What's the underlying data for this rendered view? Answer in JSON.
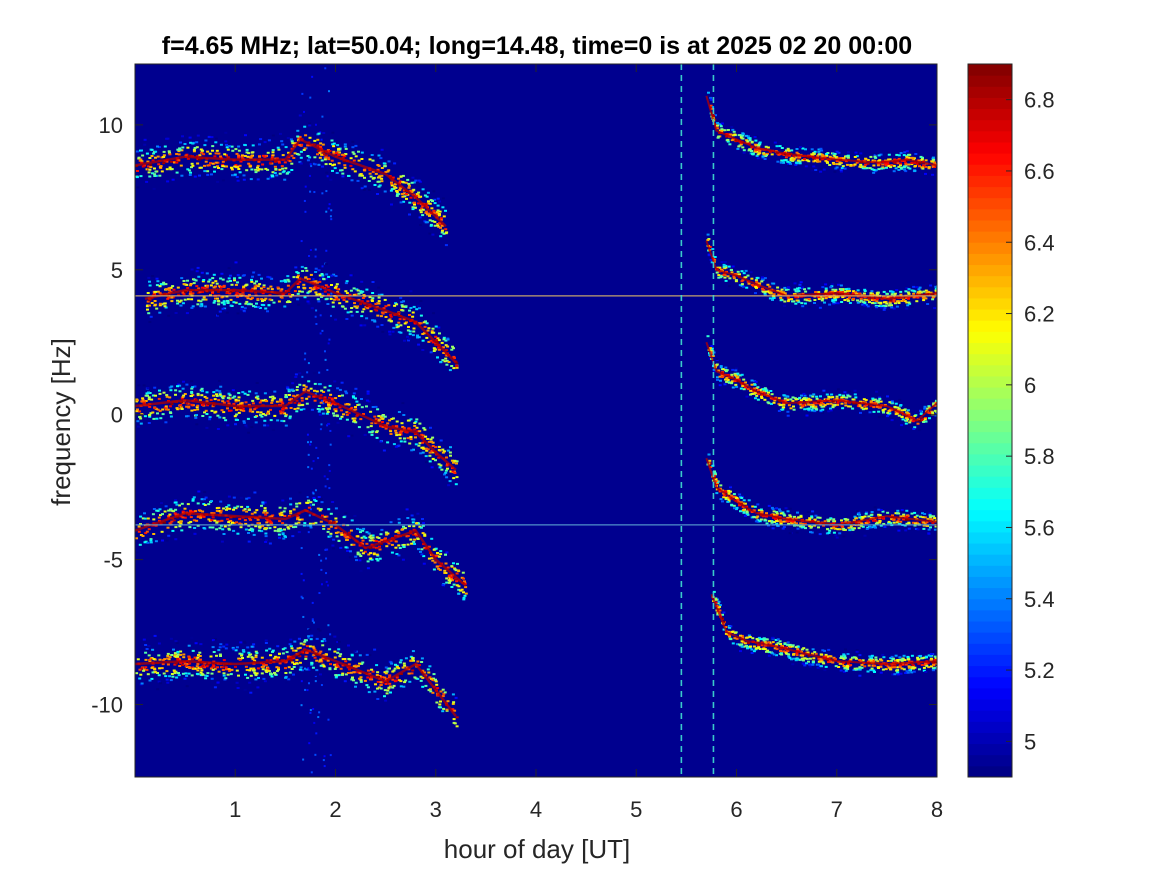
{
  "chart_data": {
    "type": "heatmap",
    "title": "f=4.65 MHz;  lat=50.04; long=14.48, time=0 is at 2025 02 20 00:00",
    "xlabel": "hour of day [UT]",
    "ylabel": "frequency [Hz]",
    "xlim": [
      0,
      8
    ],
    "ylim": [
      -12.5,
      12.1
    ],
    "xticks": [
      1,
      2,
      3,
      4,
      5,
      6,
      7,
      8
    ],
    "xtick_labels": [
      "1",
      "2",
      "3",
      "4",
      "5",
      "6",
      "7",
      "8"
    ],
    "yticks": [
      10,
      5,
      0,
      -5,
      -10
    ],
    "ytick_labels": [
      "10",
      "5",
      "0",
      "-5",
      "-10"
    ],
    "colorbar": {
      "colormap": "jet",
      "range": [
        4.9,
        6.9
      ],
      "ticks": [
        6.8,
        6.6,
        6.4,
        6.2,
        6,
        5.8,
        5.6,
        5.4,
        5.2,
        5
      ],
      "tick_labels": [
        "6.8",
        "6.6",
        "6.4",
        "6.2",
        "6",
        "5.8",
        "5.6",
        "5.4",
        "5.2",
        "5"
      ]
    },
    "background_value": 4.9,
    "background_color": "#00008f",
    "traces_before_gap": [
      {
        "name": "",
        "x": [
          0.0,
          0.5,
          1.0,
          1.5,
          1.65,
          2.0,
          2.5,
          2.8,
          3.1
        ],
        "y": [
          8.6,
          8.9,
          8.8,
          8.8,
          9.5,
          8.9,
          8.3,
          7.5,
          6.5
        ]
      },
      {
        "name": "",
        "x": [
          0.1,
          0.5,
          1.0,
          1.5,
          1.65,
          2.0,
          2.5,
          2.8,
          3.0,
          3.2
        ],
        "y": [
          4.0,
          4.3,
          4.3,
          4.2,
          4.7,
          4.2,
          3.6,
          3.2,
          2.5,
          1.8
        ]
      },
      {
        "name": "",
        "x": [
          0.0,
          0.5,
          1.0,
          1.5,
          1.7,
          2.0,
          2.5,
          2.8,
          3.0,
          3.2
        ],
        "y": [
          0.3,
          0.5,
          0.3,
          0.3,
          0.8,
          0.4,
          -0.4,
          -0.6,
          -1.3,
          -1.9
        ]
      },
      {
        "name": "",
        "x": [
          0.0,
          0.5,
          1.0,
          1.5,
          1.7,
          2.0,
          2.3,
          2.8,
          3.0,
          3.3
        ],
        "y": [
          -4.0,
          -3.4,
          -3.5,
          -3.6,
          -3.3,
          -3.8,
          -4.6,
          -4.0,
          -5.0,
          -5.9
        ]
      },
      {
        "name": "",
        "x": [
          0.0,
          0.5,
          1.0,
          1.5,
          1.7,
          2.0,
          2.5,
          2.8,
          3.0,
          3.2
        ],
        "y": [
          -8.6,
          -8.5,
          -8.6,
          -8.5,
          -8.1,
          -8.5,
          -9.2,
          -8.6,
          -9.5,
          -10.4
        ]
      }
    ],
    "traces_after_gap": [
      {
        "name": "",
        "x": [
          5.7,
          5.8,
          6.0,
          6.2,
          6.5,
          7.0,
          7.4,
          7.7,
          8.0
        ],
        "y": [
          11.0,
          9.8,
          9.5,
          9.2,
          9.0,
          8.8,
          8.7,
          8.8,
          8.6
        ]
      },
      {
        "name": "",
        "x": [
          5.7,
          5.8,
          6.0,
          6.2,
          6.5,
          7.0,
          7.5,
          8.0
        ],
        "y": [
          6.0,
          5.0,
          4.8,
          4.5,
          4.1,
          4.2,
          4.0,
          4.2
        ]
      },
      {
        "name": "",
        "x": [
          5.7,
          5.8,
          6.0,
          6.2,
          6.5,
          7.0,
          7.5,
          7.8,
          8.0
        ],
        "y": [
          2.5,
          1.5,
          1.2,
          0.8,
          0.4,
          0.5,
          0.3,
          -0.2,
          0.4
        ]
      },
      {
        "name": "",
        "x": [
          5.7,
          5.8,
          6.0,
          6.2,
          6.5,
          7.0,
          7.5,
          8.0
        ],
        "y": [
          -1.5,
          -2.5,
          -3.0,
          -3.4,
          -3.6,
          -3.8,
          -3.5,
          -3.7
        ]
      },
      {
        "name": "",
        "x": [
          5.75,
          5.9,
          6.1,
          6.4,
          7.0,
          7.5,
          8.0
        ],
        "y": [
          -6.2,
          -7.5,
          -7.8,
          -8.0,
          -8.5,
          -8.6,
          -8.5
        ]
      }
    ],
    "horizontal_lines_y": [
      4.1,
      -3.8
    ],
    "vertical_lines_x": [
      5.45,
      5.77
    ]
  }
}
